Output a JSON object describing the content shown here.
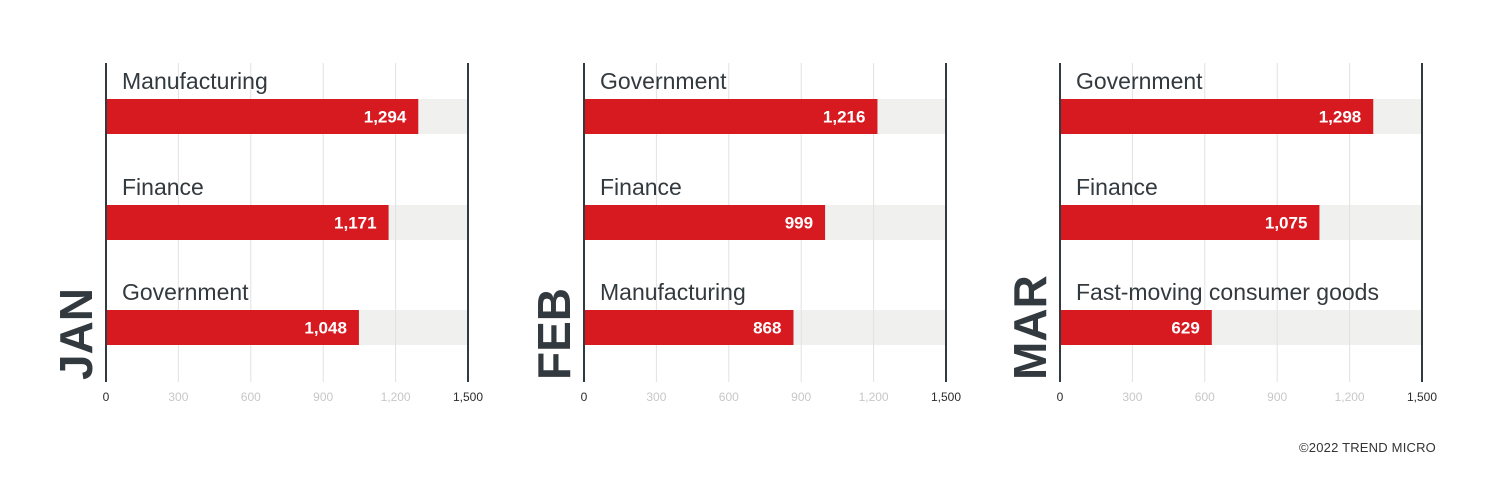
{
  "footer": {
    "copyright": "©2022 TREND MICRO"
  },
  "colors": {
    "bar": "#d71920",
    "track": "#f0f0ef",
    "axis": "#333a3f",
    "grid": "#e2e2e2",
    "tick_label": "#2b2b2b",
    "tick_label_faint": "#c7c7c7",
    "category_label": "#333a3f",
    "value_label": "#ffffff"
  },
  "chart_data": [
    {
      "type": "bar",
      "orientation": "horizontal",
      "month": "JAN",
      "categories": [
        "Manufacturing",
        "Finance",
        "Government"
      ],
      "values": [
        1294,
        1171,
        1048
      ],
      "value_labels": [
        "1,294",
        "1,171",
        "1,048"
      ],
      "xlim": [
        0,
        1500
      ],
      "xticks": [
        0,
        300,
        600,
        900,
        1200,
        1500
      ],
      "xtick_labels": [
        "0",
        "300",
        "600",
        "900",
        "1,200",
        "1,500"
      ],
      "grid": true
    },
    {
      "type": "bar",
      "orientation": "horizontal",
      "month": "FEB",
      "categories": [
        "Government",
        "Finance",
        "Manufacturing"
      ],
      "values": [
        1216,
        999,
        868
      ],
      "value_labels": [
        "1,216",
        "999",
        "868"
      ],
      "xlim": [
        0,
        1500
      ],
      "xticks": [
        0,
        300,
        600,
        900,
        1200,
        1500
      ],
      "xtick_labels": [
        "0",
        "300",
        "600",
        "900",
        "1,200",
        "1,500"
      ],
      "grid": true
    },
    {
      "type": "bar",
      "orientation": "horizontal",
      "month": "MAR",
      "categories": [
        "Government",
        "Finance",
        "Fast-moving consumer goods"
      ],
      "values": [
        1298,
        1075,
        629
      ],
      "value_labels": [
        "1,298",
        "1,075",
        "629"
      ],
      "xlim": [
        0,
        1500
      ],
      "xticks": [
        0,
        300,
        600,
        900,
        1200,
        1500
      ],
      "xtick_labels": [
        "0",
        "300",
        "600",
        "900",
        "1,200",
        "1,500"
      ],
      "grid": true
    }
  ]
}
